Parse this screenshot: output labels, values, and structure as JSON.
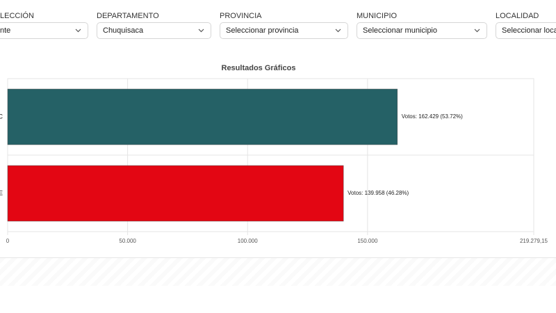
{
  "filters": [
    {
      "label": "LECCIÓN",
      "value": "nte"
    },
    {
      "label": "DEPARTAMENTO",
      "value": "Chuquisaca"
    },
    {
      "label": "PROVINCIA",
      "value": "Seleccionar provincia"
    },
    {
      "label": "MUNICIPIO",
      "value": "Seleccionar municipio"
    },
    {
      "label": "LOCALIDAD",
      "value": "Seleccionar localic"
    }
  ],
  "chart_data": {
    "type": "bar",
    "orientation": "horizontal",
    "title": "Resultados Gráficos",
    "categories": [
      "C",
      "E"
    ],
    "values": [
      162429,
      139958
    ],
    "value_labels": [
      "Votos: 162.429 (53.72%)",
      "Votos: 139.958 (46.28%)"
    ],
    "colors": [
      "#256166",
      "#e30613"
    ],
    "xlim": [
      0,
      219279.15
    ],
    "xticks": [
      0,
      {
        "value": 50000,
        "label": "50.000"
      },
      {
        "value": 100000,
        "label": "100.000"
      },
      {
        "value": 150000,
        "label": "150.000"
      },
      {
        "value": 219279.15,
        "label": "219.279,15"
      }
    ],
    "grid": true
  }
}
